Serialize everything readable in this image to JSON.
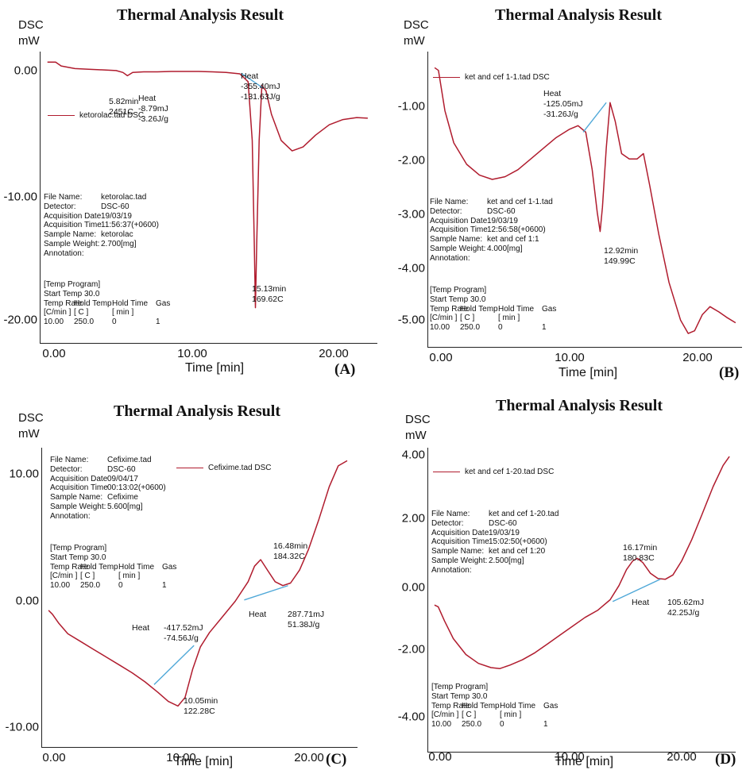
{
  "colors": {
    "curve": "#b01c2e",
    "baseline": "#4fa8d8",
    "axis": "#222222"
  },
  "chart_data": [
    {
      "type": "line",
      "panel_label": "(A)",
      "title": "Thermal Analysis Result",
      "ylabel_top": "DSC",
      "ylabel_bottom": "mW",
      "xlabel": "Time  [min]",
      "xlim": [
        -0.5,
        24
      ],
      "ylim": [
        -21.5,
        0.8
      ],
      "x_ticks": [
        "0.00",
        "10.00",
        "20.00"
      ],
      "y_ticks": [
        "0.00",
        "-10.00",
        "-20.00"
      ],
      "legend": "ketorolac.tad  DSC",
      "info": [
        [
          "File Name:",
          "ketorolac.tad"
        ],
        [
          "Detector:",
          "DSC-60"
        ],
        [
          "Acquisition Date",
          "19/03/19"
        ],
        [
          "Acquisition Time",
          "11:56:37(+0600)"
        ],
        [
          "Sample Name:",
          "ketorolac"
        ],
        [
          "Sample Weight:",
          "2.700[mg]"
        ],
        [
          "Annotation:",
          ""
        ]
      ],
      "temp_program": {
        "title": "[Temp Program]",
        "start": "Start Temp  30.0",
        "head1": [
          "Temp Rate",
          "Hold Temp",
          "Hold Time",
          "Gas"
        ],
        "head2": [
          "[C/min ]",
          "[  C  ]",
          "[  min  ]",
          ""
        ],
        "row": [
          "10.00",
          "250.0",
          "0",
          "1"
        ]
      },
      "annotations": [
        {
          "lines": [
            "5.82min",
            "2451C"
          ]
        },
        {
          "lines": [
            "Heat",
            "-8.79mJ",
            "-3.26J/g"
          ]
        },
        {
          "lines": [
            "Heat",
            "-355.40mJ",
            "-131.63J/g"
          ]
        },
        {
          "lines": [
            "15.13min",
            "169.62C"
          ]
        }
      ],
      "series": [
        {
          "x": [
            0,
            0.6,
            1,
            2,
            3,
            4,
            5,
            5.5,
            5.82,
            6.2,
            7,
            8,
            9,
            10,
            11,
            12,
            13,
            14,
            14.6,
            14.9,
            15.05,
            15.13,
            15.22,
            15.4,
            15.6,
            15.9,
            16.3,
            17,
            17.8,
            18.6,
            19.5,
            20.5,
            21.5,
            22.5,
            23.3
          ],
          "y": [
            0,
            0,
            -0.3,
            -0.5,
            -0.55,
            -0.6,
            -0.65,
            -0.8,
            -1.05,
            -0.8,
            -0.75,
            -0.75,
            -0.72,
            -0.72,
            -0.72,
            -0.75,
            -0.8,
            -0.9,
            -1.5,
            -6,
            -14,
            -18.8,
            -14,
            -6,
            -1.8,
            -2.2,
            -4,
            -6,
            -6.8,
            -6.5,
            -5.6,
            -4.8,
            -4.4,
            -4.25,
            -4.3
          ]
        }
      ],
      "baselines": [
        [
          [
            14.1,
            -0.85
          ],
          [
            15.7,
            -2.0
          ]
        ]
      ]
    },
    {
      "type": "line",
      "panel_label": "(B)",
      "title": "Thermal Analysis Result",
      "ylabel_top": "DSC",
      "ylabel_bottom": "mW",
      "xlabel": "Time  [min]",
      "xlim": [
        -0.5,
        24
      ],
      "ylim": [
        -5.5,
        0
      ],
      "x_ticks": [
        "0.00",
        "10.00",
        "20.00"
      ],
      "y_ticks": [
        "-1.00",
        "-2.00",
        "-3.00",
        "-4.00",
        "-5.00"
      ],
      "legend": "ket and cef 1-1.tad  DSC",
      "info": [
        [
          "File Name:",
          "ket and cef 1-1.tad"
        ],
        [
          "Detector:",
          "DSC-60"
        ],
        [
          "Acquisition Date",
          "19/03/19"
        ],
        [
          "Acquisition Time",
          "12:56:58(+0600)"
        ],
        [
          "Sample Name:",
          "ket and cef 1:1"
        ],
        [
          "Sample Weight:",
          "4.000[mg]"
        ],
        [
          "Annotation:",
          ""
        ]
      ],
      "temp_program": {
        "title": "[Temp Program]",
        "start": "Start Temp  30.0",
        "head1": [
          "Temp Rate",
          "Hold Temp",
          "Hold Time",
          "Gas"
        ],
        "head2": [
          "[C/min ]",
          "[  C  ]",
          "[  min  ]",
          ""
        ],
        "row": [
          "10.00",
          "250.0",
          "0",
          "1"
        ]
      },
      "annotations": [
        {
          "lines": [
            "Heat",
            "-125.05mJ",
            "-31.26J/g"
          ]
        },
        {
          "lines": [
            "12.92min",
            "149.99C"
          ]
        }
      ],
      "series": [
        {
          "x": [
            0,
            0.3,
            0.8,
            1.5,
            2.5,
            3.5,
            4.5,
            5.5,
            6.5,
            7.5,
            8.5,
            9.5,
            10.5,
            11.2,
            11.8,
            12.3,
            12.7,
            12.92,
            13.1,
            13.4,
            13.7,
            14.1,
            14.6,
            15.2,
            15.8,
            16.3,
            16.8,
            17.5,
            18.3,
            19.2,
            19.8,
            20.3,
            20.9,
            21.5,
            22.2,
            22.8,
            23.5
          ],
          "y": [
            -0.3,
            -0.35,
            -1.1,
            -1.7,
            -2.1,
            -2.3,
            -2.38,
            -2.33,
            -2.2,
            -2.0,
            -1.8,
            -1.6,
            -1.45,
            -1.38,
            -1.5,
            -2.2,
            -3.0,
            -3.35,
            -2.9,
            -1.8,
            -0.95,
            -1.3,
            -1.9,
            -2.0,
            -2.0,
            -1.9,
            -2.5,
            -3.4,
            -4.3,
            -5.0,
            -5.25,
            -5.2,
            -4.9,
            -4.75,
            -4.85,
            -4.95,
            -5.05
          ]
        }
      ],
      "baselines": [
        [
          [
            11.6,
            -1.5
          ],
          [
            13.4,
            -0.95
          ]
        ]
      ]
    },
    {
      "type": "line",
      "panel_label": "(C)",
      "title": "Thermal Analysis Result",
      "ylabel_top": "DSC",
      "ylabel_bottom": "mW",
      "xlabel": "Time  [min]",
      "xlim": [
        -0.5,
        24
      ],
      "ylim": [
        -11,
        12
      ],
      "x_ticks": [
        "0.00",
        "10.00",
        "20.00"
      ],
      "y_ticks": [
        "10.00",
        "0.00",
        "-10.00"
      ],
      "legend": "Cefixime.tad  DSC",
      "info": [
        [
          "File Name:",
          "Cefixime.tad"
        ],
        [
          "Detector:",
          "DSC-60"
        ],
        [
          "Acquisition Date",
          "09/04/17"
        ],
        [
          "Acquisition Time",
          "00:13:02(+0600)"
        ],
        [
          "Sample Name:",
          "Cefixime"
        ],
        [
          "Sample Weight:",
          "5.600[mg]"
        ],
        [
          "Annotation:",
          ""
        ]
      ],
      "temp_program": {
        "title": "[Temp Program]",
        "start": "Start Temp  30.0",
        "head1": [
          "Temp Rate",
          "Hold Temp",
          "Hold Time",
          "Gas"
        ],
        "head2": [
          "[C/min ]",
          "[  C  ]",
          "[  min  ]",
          ""
        ],
        "row": [
          "10.00",
          "250.0",
          "0",
          "1"
        ]
      },
      "annotations": [
        {
          "lines": [
            "Heat"
          ]
        },
        {
          "lines": [
            "-417.52mJ",
            "-74.56J/g"
          ]
        },
        {
          "lines": [
            "10.05min",
            "122.28C"
          ]
        },
        {
          "lines": [
            "Heat"
          ]
        },
        {
          "lines": [
            "287.71mJ",
            "51.38J/g"
          ]
        },
        {
          "lines": [
            "16.48min",
            "184.32C"
          ]
        }
      ],
      "series": [
        {
          "x": [
            0,
            0.3,
            0.8,
            1.5,
            2.5,
            3.5,
            4.5,
            5.5,
            6.5,
            7.5,
            8.5,
            9.3,
            10.05,
            10.6,
            11.2,
            11.8,
            12.5,
            13.5,
            14.5,
            15.5,
            16.0,
            16.48,
            17.0,
            17.6,
            18.2,
            18.8,
            19.5,
            20.2,
            21,
            21.8,
            22.5,
            23.2
          ],
          "y": [
            -0.5,
            -0.8,
            -1.5,
            -2.3,
            -2.9,
            -3.5,
            -4.1,
            -4.7,
            -5.3,
            -6.0,
            -6.8,
            -7.5,
            -7.85,
            -7.2,
            -5.0,
            -3.3,
            -2.2,
            -1.0,
            0.2,
            1.7,
            2.9,
            3.4,
            2.6,
            1.7,
            1.4,
            1.6,
            2.6,
            4.2,
            6.5,
            9.0,
            10.6,
            11.0
          ]
        }
      ],
      "baselines": [
        [
          [
            8.2,
            -6.2
          ],
          [
            11.3,
            -3.2
          ]
        ],
        [
          [
            15.2,
            0.3
          ],
          [
            18.6,
            1.4
          ]
        ]
      ]
    },
    {
      "type": "line",
      "panel_label": "(D)",
      "title": "Thermal Analysis Result",
      "ylabel_top": "DSC",
      "ylabel_bottom": "mW",
      "xlabel": "Time  [min]",
      "xlim": [
        -0.5,
        24
      ],
      "ylim": [
        -4.5,
        4.1
      ],
      "x_ticks": [
        "0.00",
        "10.00",
        "20.00"
      ],
      "y_ticks": [
        "4.00",
        "2.00",
        "0.00",
        "-2.00",
        "-4.00"
      ],
      "legend": "ket and cef 1-20.tad  DSC",
      "info": [
        [
          "File Name:",
          "ket and cef 1-20.tad"
        ],
        [
          "Detector:",
          "DSC-60"
        ],
        [
          "Acquisition Date",
          "19/03/19"
        ],
        [
          "Acquisition Time",
          "15:02:50(+0600)"
        ],
        [
          "Sample Name:",
          "ket and cef 1:20"
        ],
        [
          "Sample Weight:",
          "2.500[mg]"
        ],
        [
          "Annotation:",
          ""
        ]
      ],
      "temp_program": {
        "title": "[Temp Program]",
        "start": "Start Temp  30.0",
        "head1": [
          "Temp Rate",
          "Hold Temp",
          "Hold Time",
          "Gas"
        ],
        "head2": [
          "[C/min ]",
          "[  C  ]",
          "[  min  ]",
          ""
        ],
        "row": [
          "10.00",
          "250.0",
          "0",
          "1"
        ]
      },
      "annotations": [
        {
          "lines": [
            "16.17min",
            "180.83C"
          ]
        },
        {
          "lines": [
            "Heat"
          ]
        },
        {
          "lines": [
            "105.62mJ",
            "42.25J/g"
          ]
        }
      ],
      "series": [
        {
          "x": [
            0,
            0.3,
            0.8,
            1.5,
            2.5,
            3.5,
            4.5,
            5.2,
            6,
            7,
            8,
            9,
            10,
            11,
            12,
            13,
            14,
            14.7,
            15.3,
            15.8,
            16.17,
            16.6,
            17.2,
            17.8,
            18.4,
            19,
            19.7,
            20.5,
            21.3,
            22.2,
            23.0,
            23.5
          ],
          "y": [
            -0.35,
            -0.4,
            -0.8,
            -1.3,
            -1.75,
            -2.0,
            -2.12,
            -2.15,
            -2.05,
            -1.9,
            -1.7,
            -1.45,
            -1.2,
            -0.95,
            -0.7,
            -0.5,
            -0.2,
            0.2,
            0.65,
            0.9,
            0.97,
            0.85,
            0.55,
            0.4,
            0.38,
            0.5,
            0.9,
            1.5,
            2.2,
            3.0,
            3.6,
            3.85
          ]
        }
      ],
      "baselines": [
        [
          [
            14.2,
            -0.25
          ],
          [
            18.0,
            0.38
          ]
        ]
      ]
    }
  ]
}
